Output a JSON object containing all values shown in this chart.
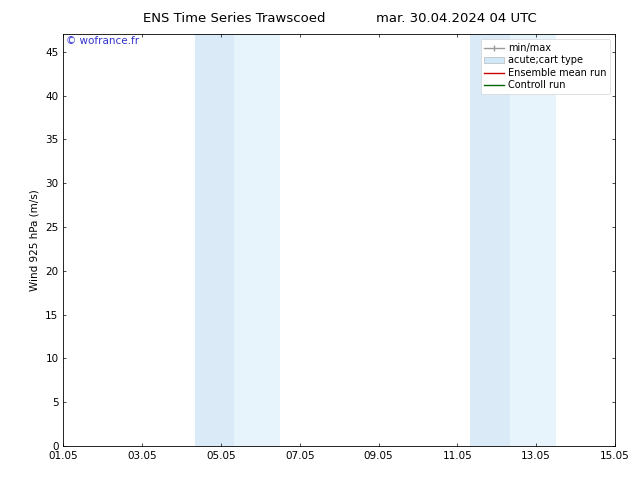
{
  "title_left": "ENS Time Series Trawscoed",
  "title_right": "mar. 30.04.2024 04 UTC",
  "ylabel": "Wind 925 hPa (m/s)",
  "watermark": "© wofrance.fr",
  "ylim": [
    0,
    47
  ],
  "yticks": [
    0,
    5,
    10,
    15,
    20,
    25,
    30,
    35,
    40,
    45
  ],
  "xtick_labels": [
    "01.05",
    "03.05",
    "05.05",
    "07.05",
    "09.05",
    "11.05",
    "13.05",
    "15.05"
  ],
  "xtick_positions": [
    0,
    2,
    4,
    6,
    8,
    10,
    12,
    14
  ],
  "bg_color": "#ffffff",
  "plot_bg_color": "#ffffff",
  "shaded_bands": [
    {
      "xmin": 3.33,
      "xmax": 4.33,
      "color": "#daeaf7"
    },
    {
      "xmin": 4.33,
      "xmax": 5.5,
      "color": "#e8f4fc"
    },
    {
      "xmin": 10.33,
      "xmax": 11.33,
      "color": "#daeaf7"
    },
    {
      "xmin": 11.33,
      "xmax": 12.5,
      "color": "#e8f4fc"
    }
  ],
  "legend_entries": [
    {
      "label": "min/max",
      "color": "#999999",
      "lw": 1.0,
      "linestyle": "-",
      "type": "line_with_cap"
    },
    {
      "label": "acute;cart type",
      "color": "#d0e8f8",
      "lw": 6,
      "linestyle": "-",
      "type": "band"
    },
    {
      "label": "Ensemble mean run",
      "color": "#cc0000",
      "lw": 1.0,
      "linestyle": "-",
      "type": "line"
    },
    {
      "label": "Controll run",
      "color": "#006600",
      "lw": 1.0,
      "linestyle": "-",
      "type": "line"
    }
  ],
  "font_size": 7.5,
  "title_font_size": 9.5,
  "watermark_color": "#3333cc",
  "axis_color": "#000000",
  "grid_color": "#dddddd",
  "x_total_days": 14
}
